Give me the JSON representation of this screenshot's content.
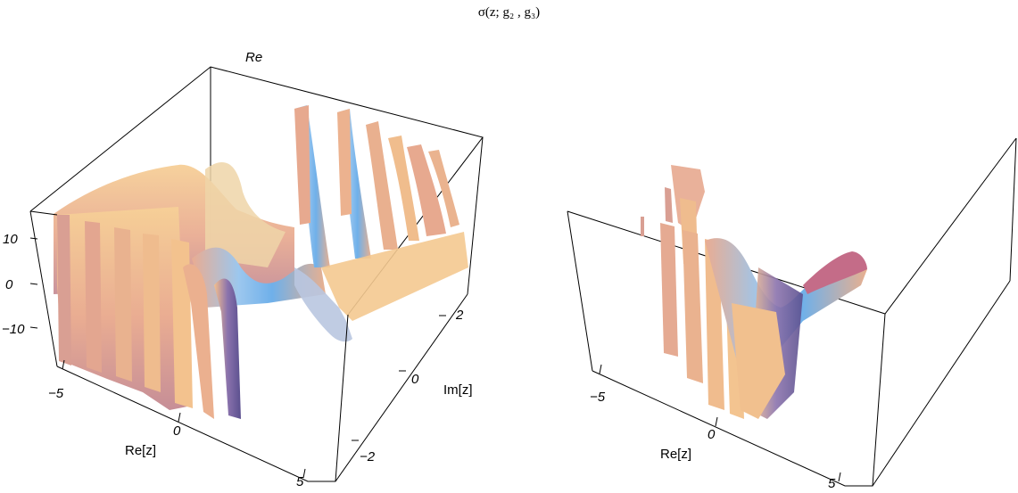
{
  "title": "σ(z; g₂ , g₃)",
  "colors": {
    "surface_warm": "#e7a98f",
    "surface_peach": "#f4c38e",
    "surface_blue": "#7ab6ea",
    "surface_purple": "#7b6aa8",
    "axis": "#000000"
  },
  "chart_data": [
    {
      "type": "surface3d",
      "panel": "left",
      "z_label": "Re",
      "x_label": "Re[z]",
      "y_label": "Im[z]",
      "xlim": [
        -6,
        6
      ],
      "ylim": [
        -3,
        3
      ],
      "zlim": [
        -18,
        15
      ],
      "x_ticks": [
        "−5",
        "0",
        "5"
      ],
      "y_ticks": [
        "−2",
        "0",
        "2"
      ],
      "z_ticks": [
        "10",
        "0",
        "−10"
      ]
    },
    {
      "type": "surface3d",
      "panel": "right",
      "x_label": "Re[z]",
      "xlim": [
        -6,
        6
      ],
      "x_ticks": [
        "−5",
        "0",
        "5"
      ]
    }
  ]
}
